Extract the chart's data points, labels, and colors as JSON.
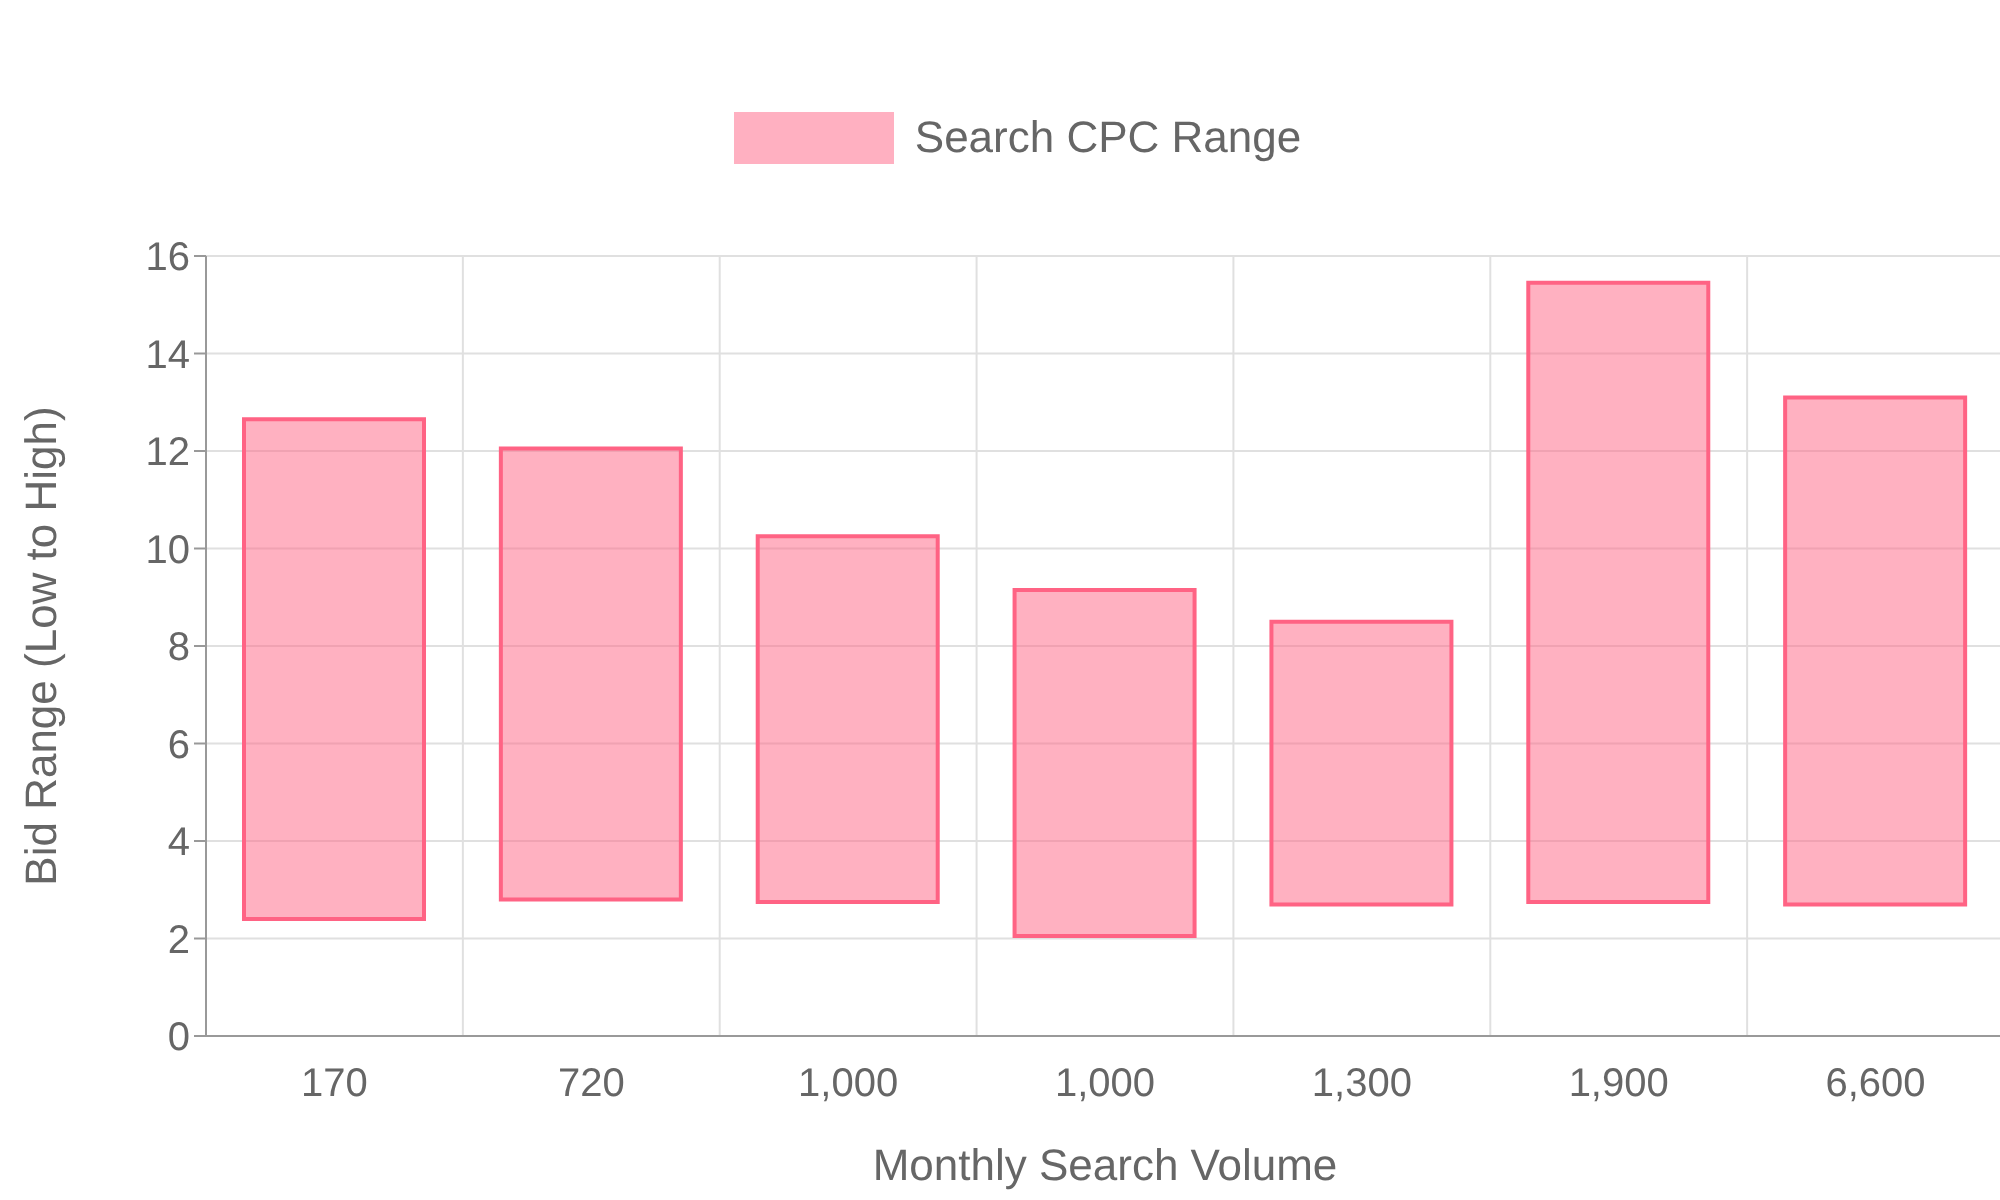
{
  "chart_data": {
    "type": "bar",
    "xlabel": "Monthly Search Volume",
    "ylabel": "Bid Range (Low to High)",
    "categories": [
      "170",
      "720",
      "1,000",
      "1,000",
      "1,300",
      "1,900",
      "6,600"
    ],
    "series": [
      {
        "name": "Search CPC Range",
        "color": "#ff6384",
        "values": [
          10.25,
          9.25,
          7.5,
          7.1,
          5.8,
          12.7,
          10.4
        ],
        "base": [
          2.4,
          2.8,
          2.75,
          2.05,
          2.7,
          2.75,
          2.7
        ]
      }
    ],
    "ylim": [
      0,
      16
    ],
    "yticks": [
      0,
      2,
      4,
      6,
      8,
      10,
      12,
      14,
      16
    ],
    "grid": true,
    "legend": "top"
  }
}
